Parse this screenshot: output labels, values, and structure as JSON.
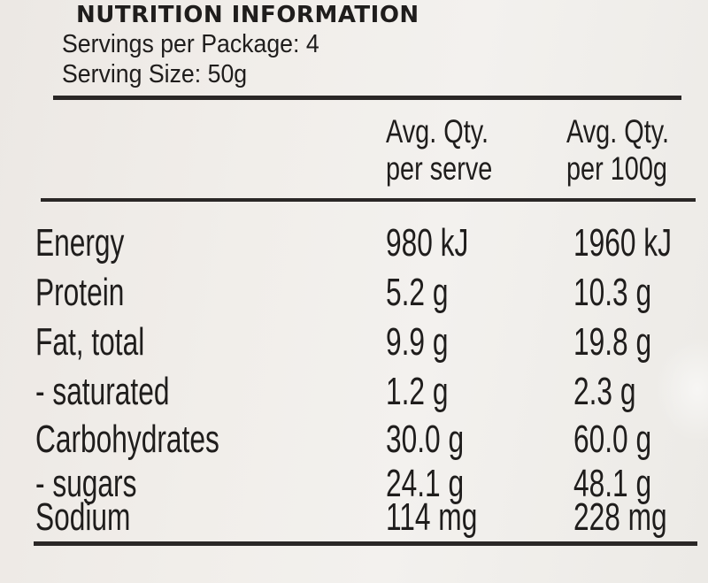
{
  "title": "NUTRITION INFORMATION",
  "servings_per_package": "Servings per Package: 4",
  "serving_size": "Serving Size: 50g",
  "columns": {
    "per_serve": [
      "Avg. Qty.",
      "per serve"
    ],
    "per_100g": [
      "Avg. Qty.",
      "per 100g"
    ]
  },
  "rows": [
    {
      "name": "Energy",
      "per_serve": "980 kJ",
      "per_100g": "1960 kJ"
    },
    {
      "name": "Protein",
      "per_serve": "5.2 g",
      "per_100g": "10.3 g"
    },
    {
      "name": "Fat, total",
      "per_serve": "9.9 g",
      "per_100g": "19.8 g"
    },
    {
      "name": "- saturated",
      "per_serve": "1.2 g",
      "per_100g": "2.3 g"
    },
    {
      "name": "Carbohydrates",
      "per_serve": "30.0 g",
      "per_100g": "60.0 g"
    },
    {
      "name": "- sugars",
      "per_serve": "24.1 g",
      "per_100g": "48.1 g"
    },
    {
      "name": "Sodium",
      "per_serve": "114 mg",
      "per_100g": "228 mg"
    }
  ]
}
